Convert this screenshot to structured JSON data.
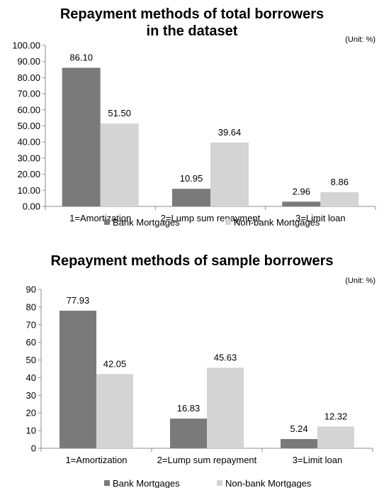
{
  "charts": [
    {
      "title": "Repayment methods of total borrowers in the dataset",
      "unit": "(Unit:  %)",
      "chart_data": {
        "type": "bar",
        "categories": [
          "1=Amortization",
          "2=Lump sum repayment",
          "3=Limit loan"
        ],
        "series": [
          {
            "name": "Bank Mortgages",
            "values": [
              86.1,
              10.95,
              2.96
            ],
            "labels": [
              "86.10",
              "10.95",
              "2.96"
            ],
            "color": "#7a7a7a"
          },
          {
            "name": "Non-bank Mortgages",
            "values": [
              51.5,
              39.64,
              8.86
            ],
            "labels": [
              "51.50",
              "39.64",
              "8.86"
            ],
            "color": "#d4d4d4"
          }
        ],
        "ylim": [
          0,
          100
        ],
        "yticks": [
          "0.00",
          "10.00",
          "20.00",
          "30.00",
          "40.00",
          "50.00",
          "60.00",
          "70.00",
          "80.00",
          "90.00",
          "100.00"
        ],
        "grid": false,
        "legend": "bottom"
      }
    },
    {
      "title": "Repayment methods of sample borrowers",
      "unit": "(Unit:  %)",
      "chart_data": {
        "type": "bar",
        "categories": [
          "1=Amortization",
          "2=Lump sum repayment",
          "3=Limit loan"
        ],
        "series": [
          {
            "name": "Bank Mortgages",
            "values": [
              77.93,
              16.83,
              5.24
            ],
            "labels": [
              "77.93",
              "16.83",
              "5.24"
            ],
            "color": "#7a7a7a"
          },
          {
            "name": "Non-bank Mortgages",
            "values": [
              42.05,
              45.63,
              12.32
            ],
            "labels": [
              "42.05",
              "45.63",
              "12.32"
            ],
            "color": "#d4d4d4"
          }
        ],
        "ylim": [
          0,
          90
        ],
        "yticks": [
          "0",
          "10",
          "20",
          "30",
          "40",
          "50",
          "60",
          "70",
          "80",
          "90"
        ],
        "grid": false,
        "legend": "bottom"
      }
    }
  ]
}
